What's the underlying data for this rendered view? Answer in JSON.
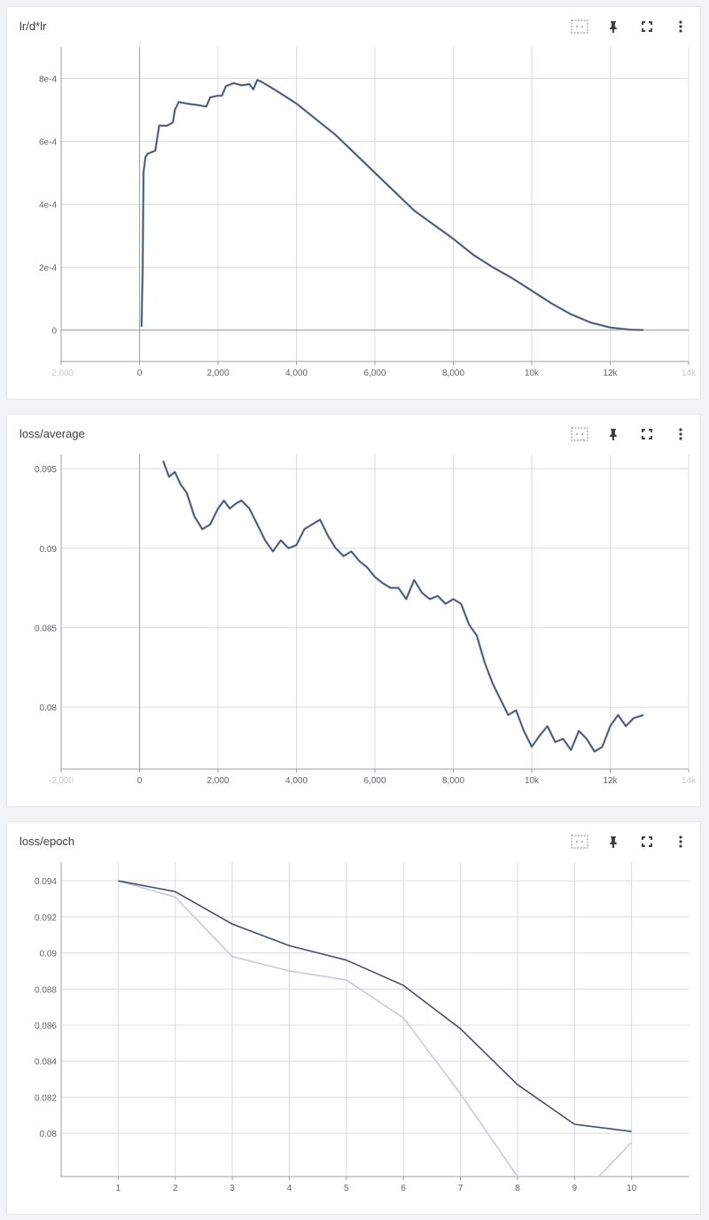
{
  "cards": [
    {
      "title": "lr/d*lr",
      "toolbar": {
        "fit_icon": "fit-domain-icon",
        "pin_icon": "pin-icon",
        "fullscreen_icon": "fullscreen-icon",
        "more_icon": "more-vert-icon"
      }
    },
    {
      "title": "loss/average",
      "toolbar": {
        "fit_icon": "fit-domain-icon",
        "pin_icon": "pin-icon",
        "fullscreen_icon": "fullscreen-icon",
        "more_icon": "more-vert-icon"
      }
    },
    {
      "title": "loss/epoch",
      "toolbar": {
        "fit_icon": "fit-domain-icon",
        "pin_icon": "pin-icon",
        "fullscreen_icon": "fullscreen-icon",
        "more_icon": "more-vert-icon"
      }
    }
  ],
  "colors": {
    "smoothed": "#425066",
    "raw": "#c5cbdb",
    "grid": "#dadce0",
    "axis": "#9aa0a6",
    "tick_text": "#5f6368"
  },
  "chart_data": [
    {
      "type": "line",
      "title": "lr/d*lr",
      "xlim": [
        -2000,
        14000
      ],
      "ylim": [
        -0.0001,
        0.0009
      ],
      "x_ticks": [
        -2000,
        0,
        2000,
        4000,
        6000,
        8000,
        10000,
        12000,
        14000
      ],
      "x_tick_labels": [
        "-2,000",
        "0",
        "2,000",
        "4,000",
        "6,000",
        "8,000",
        "10k",
        "12k",
        "14k"
      ],
      "y_ticks": [
        0,
        0.0002,
        0.0004,
        0.0006,
        0.0008
      ],
      "y_tick_labels": [
        "0",
        "2e-4",
        "4e-4",
        "6e-4",
        "8e-4"
      ],
      "grid": true,
      "series": [
        {
          "x": [
            50,
            80,
            100,
            150,
            200,
            300,
            400,
            500,
            700,
            850,
            900,
            1000,
            1200,
            1500,
            1700,
            1800,
            2000,
            2100,
            2200,
            2400,
            2600,
            2800,
            2900,
            3000,
            3100,
            3500,
            4000,
            5000,
            6000,
            7000,
            8000,
            8500,
            9000,
            9500,
            10000,
            10500,
            11000,
            11500,
            12000,
            12500,
            12850
          ],
          "y": [
            1e-05,
            0.0002,
            0.0005,
            0.00055,
            0.00056,
            0.000565,
            0.00057,
            0.00065,
            0.00065,
            0.00066,
            0.0007,
            0.000725,
            0.00072,
            0.000715,
            0.00071,
            0.00074,
            0.000745,
            0.000745,
            0.000775,
            0.000785,
            0.000778,
            0.000782,
            0.000765,
            0.000795,
            0.00079,
            0.00076,
            0.00072,
            0.00062,
            0.0005,
            0.00038,
            0.00029,
            0.00024,
            0.0002,
            0.000165,
            0.000125,
            8.5e-05,
            5e-05,
            2.4e-05,
            8e-06,
            1e-06,
            0
          ]
        }
      ]
    },
    {
      "type": "line",
      "title": "loss/average",
      "xlim": [
        -2000,
        14000
      ],
      "ylim": [
        0.0761,
        0.0959
      ],
      "x_ticks": [
        -2000,
        0,
        2000,
        4000,
        6000,
        8000,
        10000,
        12000,
        14000
      ],
      "x_tick_labels": [
        "-2,000",
        "0",
        "2,000",
        "4,000",
        "6,000",
        "8,000",
        "10k",
        "12k",
        "14k"
      ],
      "y_ticks": [
        0.08,
        0.085,
        0.09,
        0.095
      ],
      "y_tick_labels": [
        "0.08",
        "0.085",
        "0.09",
        "0.095"
      ],
      "grid": true,
      "series": [
        {
          "x": [
            600,
            750,
            900,
            1050,
            1200,
            1400,
            1600,
            1800,
            2000,
            2150,
            2300,
            2450,
            2600,
            2800,
            3000,
            3200,
            3400,
            3600,
            3800,
            4000,
            4200,
            4400,
            4600,
            4800,
            5000,
            5200,
            5400,
            5600,
            5800,
            6000,
            6200,
            6400,
            6600,
            6800,
            7000,
            7200,
            7400,
            7600,
            7800,
            8000,
            8200,
            8400,
            8600,
            8800,
            9000,
            9200,
            9400,
            9600,
            9800,
            10000,
            10200,
            10400,
            10600,
            10800,
            11000,
            11200,
            11400,
            11600,
            11800,
            12000,
            12200,
            12400,
            12600,
            12850
          ],
          "y": [
            0.0955,
            0.0945,
            0.0948,
            0.094,
            0.0935,
            0.092,
            0.0912,
            0.0915,
            0.0925,
            0.093,
            0.0925,
            0.0928,
            0.093,
            0.0925,
            0.0915,
            0.0905,
            0.0898,
            0.0905,
            0.09,
            0.0902,
            0.0912,
            0.0915,
            0.0918,
            0.0908,
            0.09,
            0.0895,
            0.0898,
            0.0892,
            0.0888,
            0.0882,
            0.0878,
            0.0875,
            0.0875,
            0.0868,
            0.088,
            0.0872,
            0.0868,
            0.087,
            0.0865,
            0.0868,
            0.0865,
            0.0852,
            0.0845,
            0.0828,
            0.0815,
            0.0805,
            0.0795,
            0.0798,
            0.0785,
            0.0775,
            0.0782,
            0.0788,
            0.0778,
            0.078,
            0.0773,
            0.0785,
            0.078,
            0.0772,
            0.0775,
            0.0788,
            0.0795,
            0.0788,
            0.0793,
            0.0795
          ]
        }
      ]
    },
    {
      "type": "line",
      "title": "loss/epoch",
      "xlim": [
        0,
        11
      ],
      "ylim": [
        0.0776,
        0.09504
      ],
      "x_ticks": [
        1,
        2,
        3,
        4,
        5,
        6,
        7,
        8,
        9,
        10
      ],
      "x_tick_labels": [
        "1",
        "2",
        "3",
        "4",
        "5",
        "6",
        "7",
        "8",
        "9",
        "10"
      ],
      "y_ticks": [
        0.08,
        0.082,
        0.084,
        0.086,
        0.088,
        0.09,
        0.092,
        0.094
      ],
      "y_tick_labels": [
        "0.08",
        "0.082",
        "0.084",
        "0.086",
        "0.088",
        "0.09",
        "0.092",
        "0.094"
      ],
      "grid": true,
      "series": [
        {
          "x": [
            1,
            2,
            3,
            4,
            5,
            6,
            7,
            8,
            9,
            10
          ],
          "y": [
            0.094,
            0.0934,
            0.0916,
            0.0904,
            0.0896,
            0.0882,
            0.0858,
            0.0827,
            0.0805,
            0.0801
          ]
        },
        {
          "x": [
            1,
            2,
            3,
            4,
            5,
            6,
            7,
            8,
            9,
            10
          ],
          "y": [
            0.094,
            0.0931,
            0.0898,
            0.089,
            0.0885,
            0.0864,
            0.0822,
            0.0776,
            0.0762,
            0.0795
          ]
        }
      ]
    }
  ]
}
